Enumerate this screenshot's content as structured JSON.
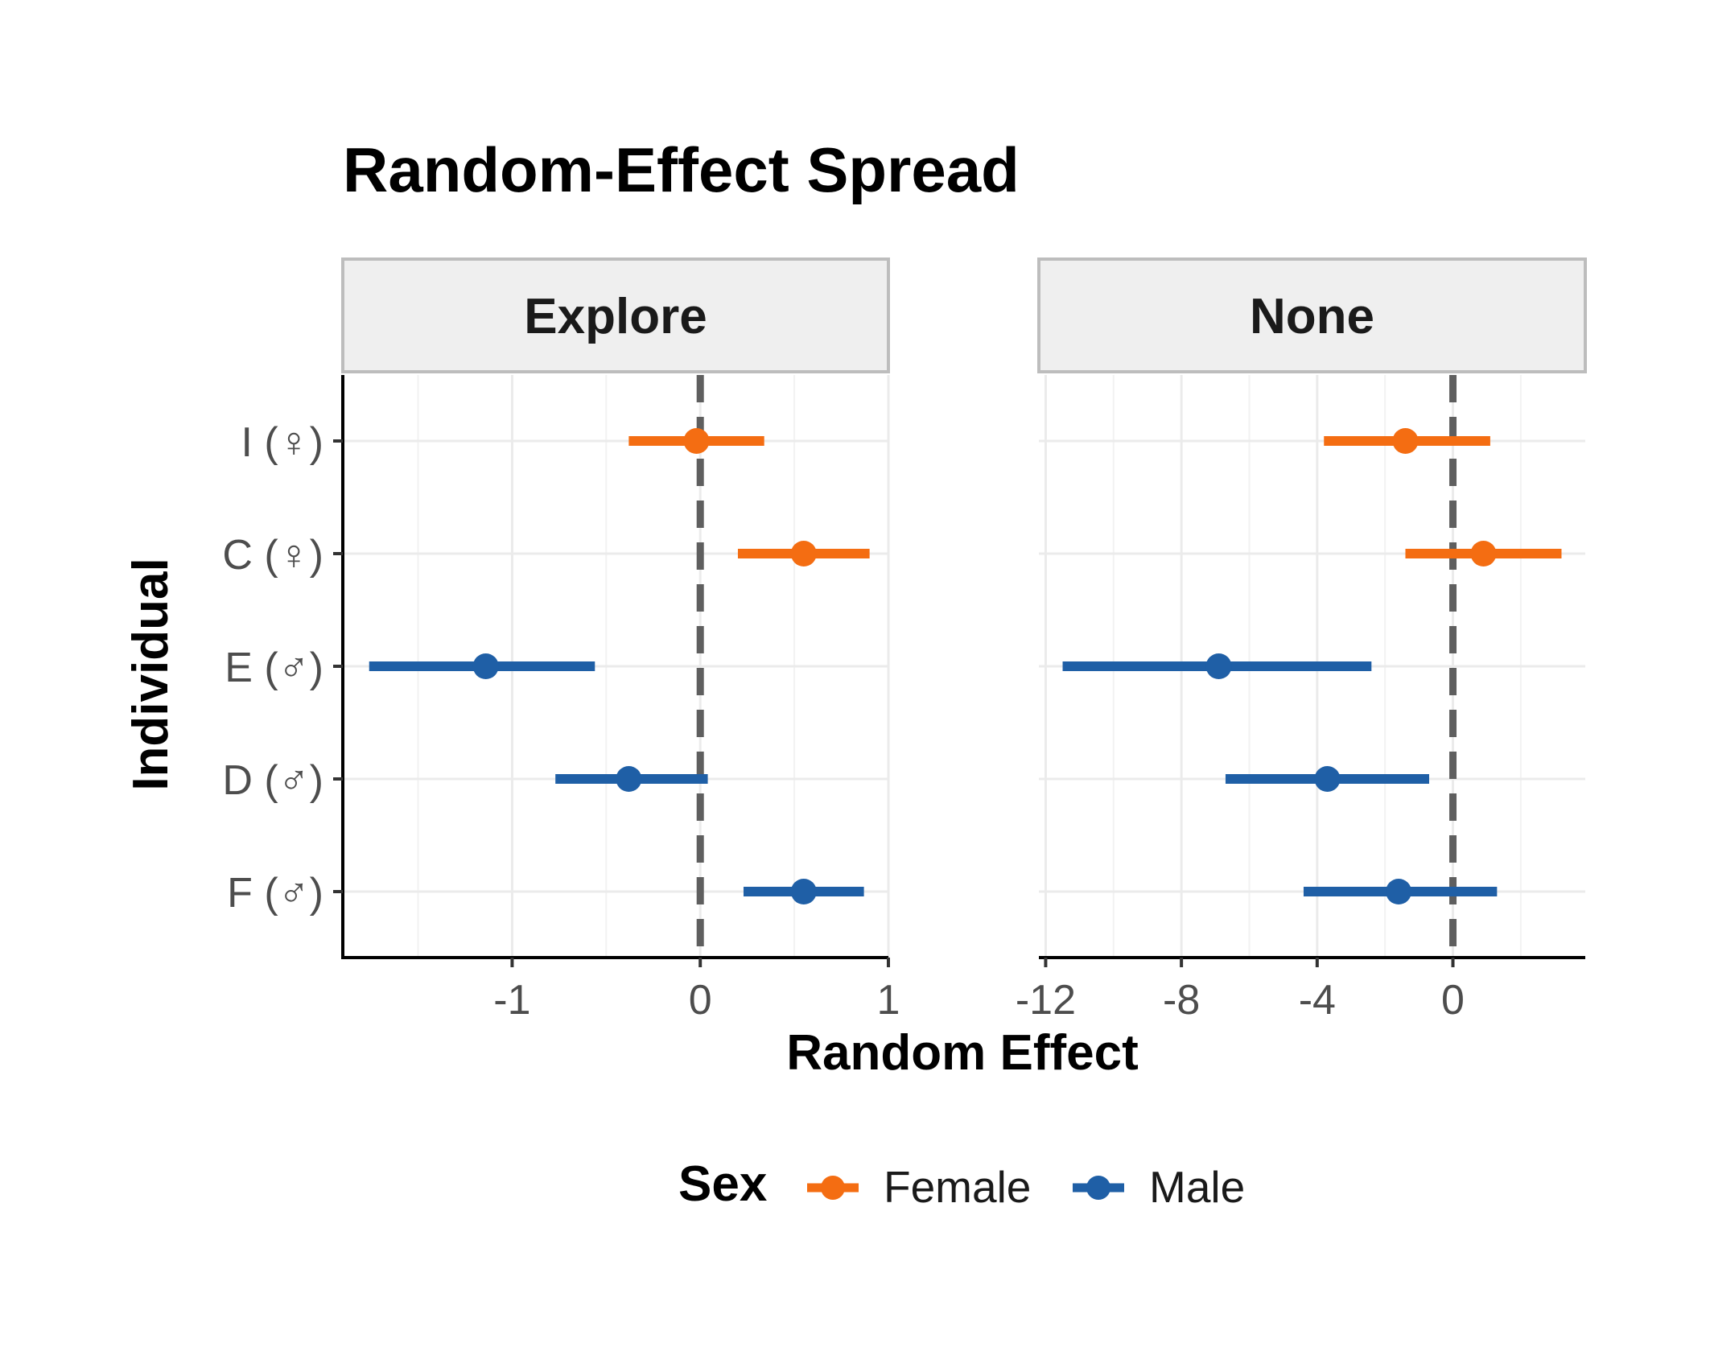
{
  "chart_data": {
    "type": "forest",
    "title": "Random-Effect Spread",
    "xlabel": "Random Effect",
    "ylabel": "Individual",
    "categories": [
      "I (♀)",
      "C (♀)",
      "E (♂)",
      "D (♂)",
      "F (♂)"
    ],
    "legend": {
      "title": "Sex",
      "position": "bottom",
      "entries": [
        {
          "label": "Female",
          "color": "#F46D12"
        },
        {
          "label": "Male",
          "color": "#1F5FA6"
        }
      ]
    },
    "reference_line": 0,
    "grid": true,
    "panels": [
      {
        "label": "Explore",
        "xlim": [
          -1.9,
          1.0
        ],
        "ticks": [
          -1,
          0,
          1
        ],
        "tick_labels": [
          "-1",
          "0",
          "1"
        ],
        "points": [
          {
            "individual": "I (♀)",
            "sex": "Female",
            "estimate": -0.02,
            "lower": -0.38,
            "upper": 0.34
          },
          {
            "individual": "C (♀)",
            "sex": "Female",
            "estimate": 0.55,
            "lower": 0.2,
            "upper": 0.9
          },
          {
            "individual": "E (♂)",
            "sex": "Male",
            "estimate": -1.14,
            "lower": -1.76,
            "upper": -0.56
          },
          {
            "individual": "D (♂)",
            "sex": "Male",
            "estimate": -0.38,
            "lower": -0.77,
            "upper": 0.04
          },
          {
            "individual": "F (♂)",
            "sex": "Male",
            "estimate": 0.55,
            "lower": 0.23,
            "upper": 0.87
          }
        ]
      },
      {
        "label": "None",
        "xlim": [
          -12.2,
          3.9
        ],
        "ticks": [
          -12,
          -8,
          -4,
          0
        ],
        "tick_labels": [
          "-12",
          "-8",
          "-4",
          "0"
        ],
        "points": [
          {
            "individual": "I (♀)",
            "sex": "Female",
            "estimate": -1.4,
            "lower": -3.8,
            "upper": 1.1
          },
          {
            "individual": "C (♀)",
            "sex": "Female",
            "estimate": 0.9,
            "lower": -1.4,
            "upper": 3.2
          },
          {
            "individual": "E (♂)",
            "sex": "Male",
            "estimate": -6.9,
            "lower": -11.5,
            "upper": -2.4
          },
          {
            "individual": "D (♂)",
            "sex": "Male",
            "estimate": -3.7,
            "lower": -6.7,
            "upper": -0.7
          },
          {
            "individual": "F (♂)",
            "sex": "Male",
            "estimate": -1.6,
            "lower": -4.4,
            "upper": 1.3
          }
        ]
      }
    ]
  }
}
